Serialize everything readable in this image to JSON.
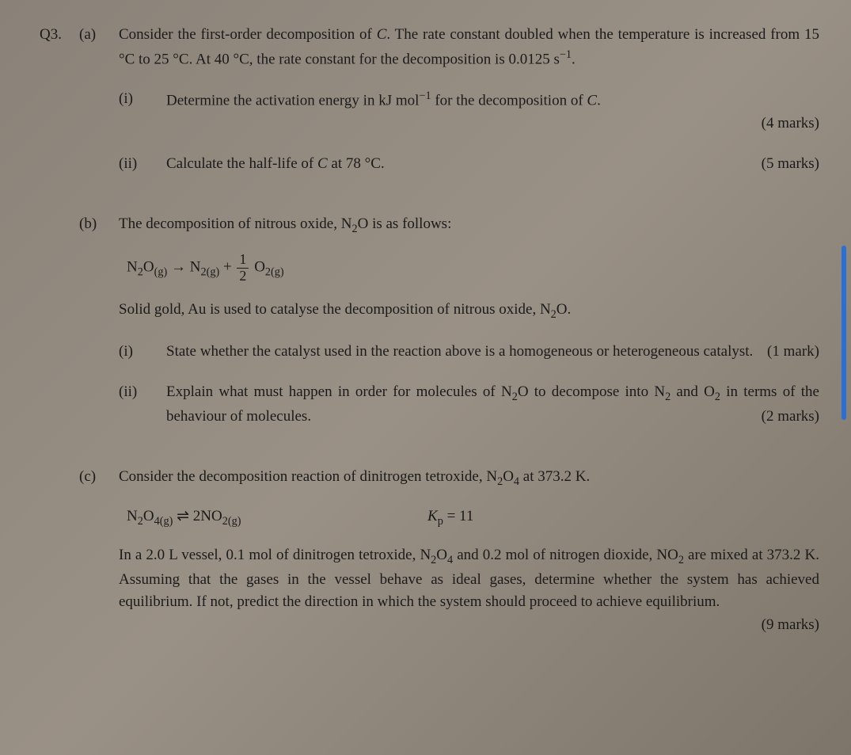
{
  "qnum": "Q3.",
  "a": {
    "label": "(a)",
    "intro": "Consider the first-order decomposition of C. The rate constant doubled when the temperature is increased from 15 °C to 25 °C. At 40 °C, the rate constant for the decomposition is 0.0125 s⁻¹.",
    "i": {
      "label": "(i)",
      "text": "Determine the activation energy in kJ mol⁻¹ for the decomposition of C.",
      "marks": "(4 marks)"
    },
    "ii": {
      "label": "(ii)",
      "text": "Calculate the half-life of C at 78 °C.",
      "marks": "(5 marks)"
    }
  },
  "b": {
    "label": "(b)",
    "intro": "The decomposition of nitrous oxide, N₂O is as follows:",
    "eq_lhs": "N₂O(g) → N₂(g) + ",
    "eq_frac_num": "1",
    "eq_frac_den": "2",
    "eq_rhs": " O₂(g)",
    "line2": "Solid gold, Au is used to catalyse the decomposition of nitrous oxide, N₂O.",
    "i": {
      "label": "(i)",
      "text": "State whether the catalyst used in the reaction above is a homogeneous or heterogeneous catalyst.",
      "marks": "(1 mark)"
    },
    "ii": {
      "label": "(ii)",
      "text": "Explain what must happen in order for molecules of N₂O to decompose into N₂ and O₂ in terms of the behaviour of molecules.",
      "marks": "(2 marks)"
    }
  },
  "c": {
    "label": "(c)",
    "intro": "Consider the decomposition reaction of dinitrogen tetroxide, N₂O₄ at 373.2 K.",
    "eq1": "N₂O₄(g) ⇌ 2NO₂(g)",
    "kp_lhs": "K",
    "kp_sub": "p",
    "kp_rhs": " = 11",
    "body": "In a 2.0 L vessel, 0.1 mol of dinitrogen tetroxide, N₂O₄ and 0.2 mol of nitrogen dioxide, NO₂ are mixed at 373.2 K. Assuming that the gases in the vessel behave as ideal gases, determine whether the system has achieved equilibrium. If not, predict the direction in which the system should proceed to achieve equilibrium.",
    "marks": "(9 marks)"
  }
}
